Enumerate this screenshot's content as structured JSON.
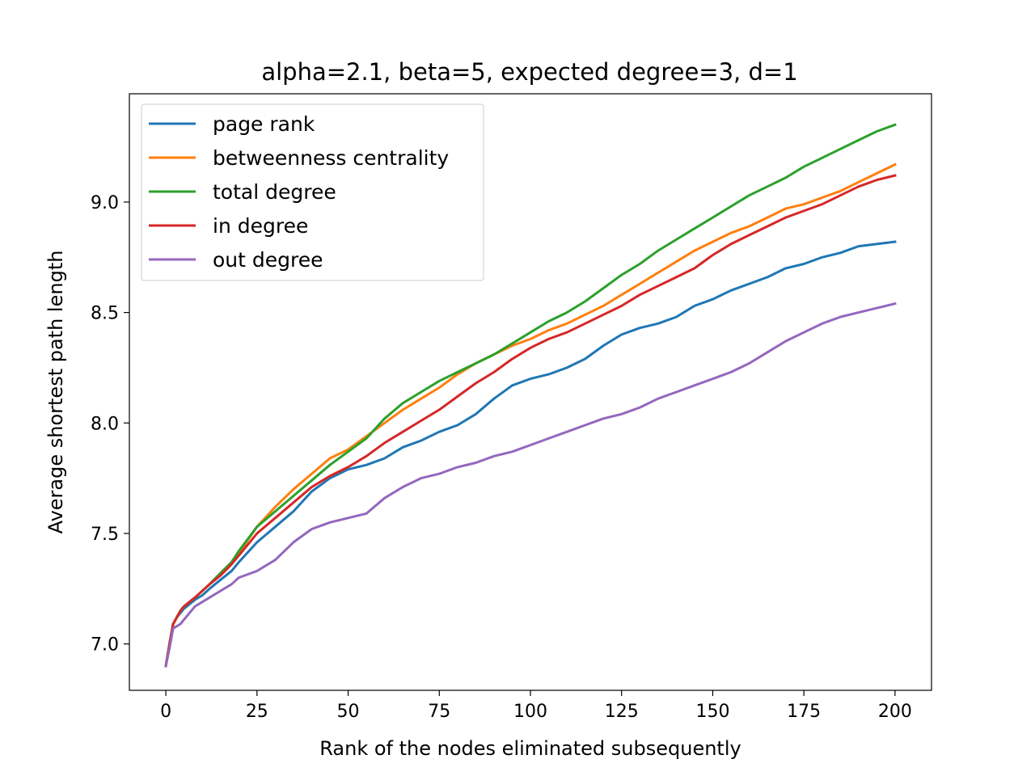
{
  "chart_data": {
    "type": "line",
    "title": "alpha=2.1, beta=5, expected degree=3, d=1",
    "xlabel": "Rank of the nodes eliminated subsequently",
    "ylabel": "Average shortest path length",
    "xlim": [
      -10,
      210
    ],
    "ylim": [
      6.79,
      9.49
    ],
    "xticks": [
      0,
      25,
      50,
      75,
      100,
      125,
      150,
      175,
      200
    ],
    "xtick_labels": [
      "0",
      "25",
      "50",
      "75",
      "100",
      "125",
      "150",
      "175",
      "200"
    ],
    "yticks": [
      7.0,
      7.5,
      8.0,
      8.5,
      9.0
    ],
    "ytick_labels": [
      "7.0",
      "7.5",
      "8.0",
      "8.5",
      "9.0"
    ],
    "grid": false,
    "legend_position": "top-left",
    "x": [
      0,
      1,
      2,
      3,
      4,
      5,
      8,
      10,
      12,
      15,
      18,
      20,
      25,
      30,
      35,
      40,
      45,
      50,
      55,
      60,
      65,
      70,
      75,
      80,
      85,
      90,
      95,
      100,
      105,
      110,
      115,
      120,
      125,
      130,
      135,
      140,
      145,
      150,
      155,
      160,
      165,
      170,
      175,
      180,
      185,
      190,
      195,
      200
    ],
    "series": [
      {
        "name": "page rank",
        "color": "#1f77b4",
        "values": [
          6.9,
          7.0,
          7.09,
          7.12,
          7.14,
          7.16,
          7.2,
          7.22,
          7.25,
          7.29,
          7.33,
          7.37,
          7.46,
          7.53,
          7.6,
          7.69,
          7.75,
          7.79,
          7.81,
          7.84,
          7.89,
          7.92,
          7.96,
          7.99,
          8.04,
          8.11,
          8.17,
          8.2,
          8.22,
          8.25,
          8.29,
          8.35,
          8.4,
          8.43,
          8.45,
          8.48,
          8.53,
          8.56,
          8.6,
          8.63,
          8.66,
          8.7,
          8.72,
          8.75,
          8.77,
          8.8,
          8.81,
          8.82
        ]
      },
      {
        "name": "betweenness centrality",
        "color": "#ff7f0e",
        "values": [
          6.9,
          7.0,
          7.09,
          7.12,
          7.15,
          7.17,
          7.21,
          7.24,
          7.27,
          7.32,
          7.37,
          7.41,
          7.53,
          7.62,
          7.7,
          7.77,
          7.84,
          7.88,
          7.94,
          8.0,
          8.06,
          8.11,
          8.16,
          8.22,
          8.27,
          8.31,
          8.35,
          8.38,
          8.42,
          8.45,
          8.49,
          8.53,
          8.58,
          8.63,
          8.68,
          8.73,
          8.78,
          8.82,
          8.86,
          8.89,
          8.93,
          8.97,
          8.99,
          9.02,
          9.05,
          9.09,
          9.13,
          9.17
        ]
      },
      {
        "name": "total degree",
        "color": "#2ca02c",
        "values": [
          6.9,
          7.0,
          7.09,
          7.12,
          7.15,
          7.17,
          7.21,
          7.24,
          7.27,
          7.32,
          7.37,
          7.42,
          7.53,
          7.6,
          7.67,
          7.74,
          7.81,
          7.87,
          7.93,
          8.02,
          8.09,
          8.14,
          8.19,
          8.23,
          8.27,
          8.31,
          8.36,
          8.41,
          8.46,
          8.5,
          8.55,
          8.61,
          8.67,
          8.72,
          8.78,
          8.83,
          8.88,
          8.93,
          8.98,
          9.03,
          9.07,
          9.11,
          9.16,
          9.2,
          9.24,
          9.28,
          9.32,
          9.35
        ]
      },
      {
        "name": "in degree",
        "color": "#d62728",
        "values": [
          6.9,
          7.0,
          7.09,
          7.12,
          7.15,
          7.17,
          7.21,
          7.24,
          7.27,
          7.31,
          7.36,
          7.4,
          7.5,
          7.57,
          7.64,
          7.71,
          7.76,
          7.8,
          7.85,
          7.91,
          7.96,
          8.01,
          8.06,
          8.12,
          8.18,
          8.23,
          8.29,
          8.34,
          8.38,
          8.41,
          8.45,
          8.49,
          8.53,
          8.58,
          8.62,
          8.66,
          8.7,
          8.76,
          8.81,
          8.85,
          8.89,
          8.93,
          8.96,
          8.99,
          9.03,
          9.07,
          9.1,
          9.12
        ]
      },
      {
        "name": "out degree",
        "color": "#9467bd",
        "values": [
          6.9,
          6.98,
          7.07,
          7.08,
          7.09,
          7.11,
          7.17,
          7.19,
          7.21,
          7.24,
          7.27,
          7.3,
          7.33,
          7.38,
          7.46,
          7.52,
          7.55,
          7.57,
          7.59,
          7.66,
          7.71,
          7.75,
          7.77,
          7.8,
          7.82,
          7.85,
          7.87,
          7.9,
          7.93,
          7.96,
          7.99,
          8.02,
          8.04,
          8.07,
          8.11,
          8.14,
          8.17,
          8.2,
          8.23,
          8.27,
          8.32,
          8.37,
          8.41,
          8.45,
          8.48,
          8.5,
          8.52,
          8.54
        ]
      }
    ]
  }
}
